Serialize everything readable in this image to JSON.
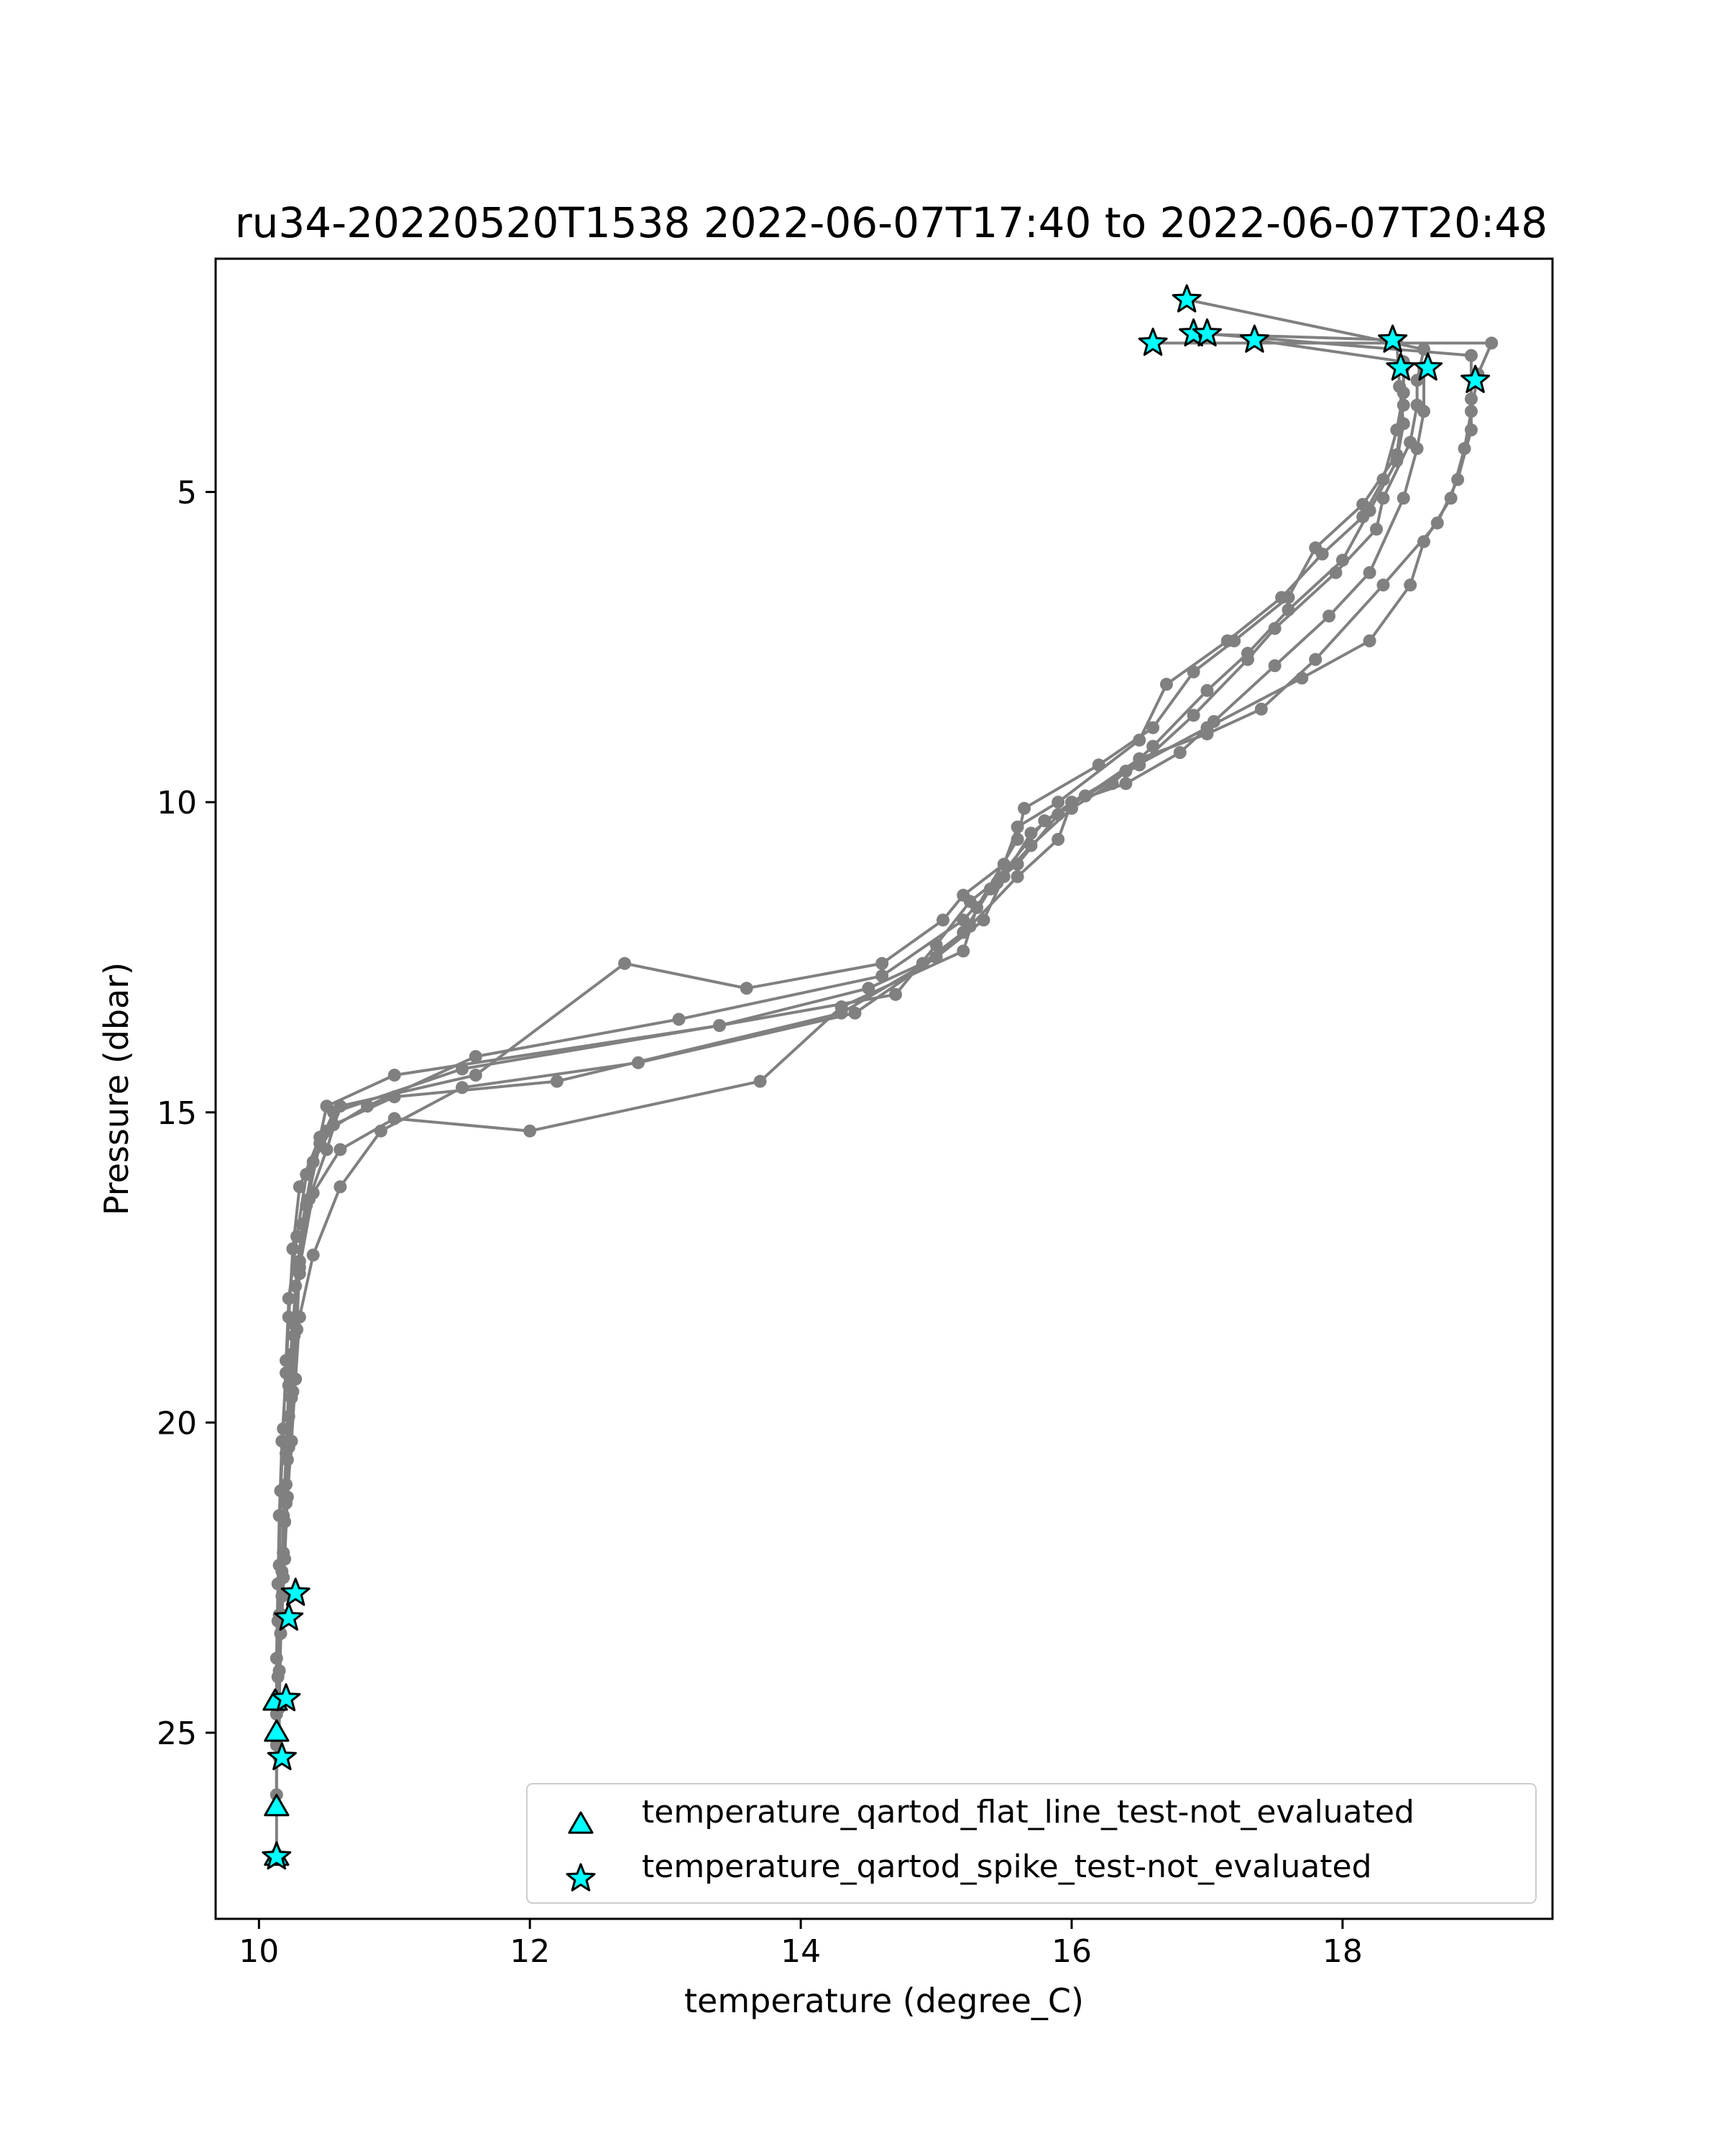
{
  "chart_data": {
    "type": "scatter",
    "title": "ru34-20220520T1538 2022-06-07T17:40 to 2022-06-07T20:48",
    "xlabel": "temperature (degree_C)",
    "ylabel": "Pressure (dbar)",
    "xlim": [
      9.68,
      19.55
    ],
    "ylim": [
      28.0,
      1.24
    ],
    "y_inverted": true,
    "grid": false,
    "x_ticks": [
      {
        "value": 10,
        "label": "10"
      },
      {
        "value": 12,
        "label": "12"
      },
      {
        "value": 14,
        "label": "14"
      },
      {
        "value": 16,
        "label": "16"
      },
      {
        "value": 18,
        "label": "18"
      }
    ],
    "y_ticks": [
      {
        "value": 5,
        "label": "5"
      },
      {
        "value": 10,
        "label": "10"
      },
      {
        "value": 15,
        "label": "15"
      },
      {
        "value": 20,
        "label": "20"
      },
      {
        "value": 25,
        "label": "25"
      }
    ],
    "colors": {
      "profile_line": "#808080",
      "flag_fill": "#00ffff",
      "flag_edge": "#000000",
      "axes": "#000000"
    },
    "legend": {
      "placement": "lower-right",
      "entries": [
        {
          "marker": "triangle",
          "label": "temperature_qartod_flat_line_test-not_evaluated"
        },
        {
          "marker": "star",
          "label": "temperature_qartod_spike_test-not_evaluated"
        }
      ]
    },
    "series": [
      {
        "marker": "circle",
        "points": [
          [
            18.6,
            2.7
          ],
          [
            18.55,
            3.2
          ],
          [
            18.55,
            3.6
          ],
          [
            18.5,
            4.2
          ],
          [
            18.3,
            5.1
          ],
          [
            18.25,
            5.6
          ],
          [
            17.95,
            6.3
          ],
          [
            17.5,
            7.2
          ],
          [
            17.3,
            7.7
          ],
          [
            16.9,
            8.6
          ],
          [
            16.5,
            9.4
          ],
          [
            16.1,
            9.9
          ],
          [
            15.8,
            10.3
          ],
          [
            15.4,
            11.4
          ],
          [
            15.2,
            12.1
          ],
          [
            14.9,
            12.6
          ],
          [
            14.5,
            13.0
          ],
          [
            13.4,
            13.6
          ],
          [
            11.0,
            14.4
          ],
          [
            10.5,
            14.9
          ],
          [
            10.45,
            15.4
          ],
          [
            10.3,
            16.2
          ],
          [
            10.25,
            17.2
          ],
          [
            10.22,
            18.3
          ],
          [
            10.2,
            19.2
          ],
          [
            10.17,
            20.3
          ],
          [
            10.15,
            21.5
          ],
          [
            10.14,
            22.6
          ],
          [
            10.13,
            23.8
          ],
          [
            10.13,
            24.7
          ]
        ]
      },
      {
        "marker": "circle",
        "points": [
          [
            19.1,
            2.6
          ],
          [
            19.0,
            3.1
          ],
          [
            18.95,
            3.7
          ],
          [
            18.9,
            4.3
          ],
          [
            18.8,
            5.1
          ],
          [
            18.6,
            5.8
          ],
          [
            18.5,
            6.5
          ],
          [
            18.2,
            7.4
          ],
          [
            17.7,
            8.0
          ],
          [
            17.0,
            8.8
          ],
          [
            16.4,
            9.5
          ],
          [
            16.0,
            10.0
          ],
          [
            15.7,
            10.5
          ],
          [
            15.5,
            11.2
          ],
          [
            15.35,
            11.9
          ],
          [
            15.0,
            12.5
          ],
          [
            14.3,
            13.4
          ],
          [
            12.2,
            14.5
          ],
          [
            11.0,
            14.75
          ],
          [
            10.55,
            15.2
          ],
          [
            10.4,
            15.8
          ],
          [
            10.32,
            16.8
          ],
          [
            10.27,
            17.8
          ],
          [
            10.24,
            18.9
          ],
          [
            10.22,
            19.9
          ],
          [
            10.2,
            21.0
          ],
          [
            10.18,
            22.1
          ],
          [
            10.17,
            22.8
          ]
        ]
      },
      {
        "marker": "circle",
        "points": [
          [
            18.4,
            2.55
          ],
          [
            18.42,
            3.3
          ],
          [
            18.45,
            3.9
          ],
          [
            18.4,
            4.5
          ],
          [
            18.2,
            5.3
          ],
          [
            18.0,
            6.1
          ],
          [
            17.6,
            6.9
          ],
          [
            17.3,
            7.6
          ],
          [
            17.0,
            8.2
          ],
          [
            16.6,
            9.1
          ],
          [
            16.3,
            9.7
          ],
          [
            16.0,
            10.1
          ],
          [
            15.7,
            10.7
          ],
          [
            15.45,
            11.3
          ],
          [
            15.2,
            11.9
          ],
          [
            14.6,
            12.8
          ],
          [
            13.1,
            13.5
          ],
          [
            11.6,
            14.1
          ],
          [
            10.8,
            14.9
          ],
          [
            10.5,
            15.3
          ],
          [
            10.35,
            16.0
          ],
          [
            10.28,
            17.0
          ],
          [
            10.22,
            18.0
          ],
          [
            10.2,
            19.0
          ],
          [
            10.18,
            20.1
          ],
          [
            10.16,
            21.1
          ],
          [
            10.15,
            22.3
          ],
          [
            10.14,
            23.2
          ]
        ]
      },
      {
        "marker": "circle",
        "points": [
          [
            18.95,
            2.8
          ],
          [
            18.95,
            3.5
          ],
          [
            18.95,
            4.0
          ],
          [
            18.85,
            4.8
          ],
          [
            18.7,
            5.5
          ],
          [
            18.3,
            6.5
          ],
          [
            17.8,
            7.7
          ],
          [
            17.4,
            8.5
          ],
          [
            17.0,
            8.9
          ],
          [
            16.5,
            9.3
          ],
          [
            16.1,
            9.9
          ],
          [
            15.9,
            10.2
          ],
          [
            15.6,
            11.0
          ],
          [
            15.25,
            11.6
          ],
          [
            15.0,
            12.3
          ],
          [
            14.7,
            13.1
          ],
          [
            13.4,
            13.6
          ],
          [
            11.5,
            14.3
          ],
          [
            10.55,
            15.0
          ],
          [
            10.45,
            15.5
          ],
          [
            10.35,
            16.5
          ],
          [
            10.3,
            17.6
          ],
          [
            10.26,
            18.6
          ],
          [
            10.24,
            19.6
          ],
          [
            10.21,
            20.6
          ],
          [
            10.19,
            21.6
          ],
          [
            10.18,
            22.5
          ],
          [
            10.16,
            23.4
          ],
          [
            10.15,
            24.6
          ]
        ]
      },
      {
        "marker": "circle",
        "points": [
          [
            18.45,
            2.9
          ],
          [
            18.45,
            3.4
          ],
          [
            18.4,
            4.0
          ],
          [
            18.3,
            4.8
          ],
          [
            18.15,
            5.4
          ],
          [
            17.85,
            6.0
          ],
          [
            17.55,
            6.7
          ],
          [
            17.15,
            7.4
          ],
          [
            16.7,
            8.1
          ],
          [
            16.5,
            9.0
          ],
          [
            15.9,
            10.0
          ],
          [
            15.6,
            10.4
          ],
          [
            15.5,
            11.0
          ],
          [
            15.2,
            11.5
          ],
          [
            15.05,
            11.9
          ],
          [
            14.6,
            12.6
          ],
          [
            13.6,
            13.0
          ],
          [
            12.7,
            12.6
          ],
          [
            11.6,
            14.4
          ],
          [
            10.6,
            14.9
          ],
          [
            10.5,
            15.6
          ],
          [
            10.37,
            16.4
          ],
          [
            10.3,
            17.4
          ],
          [
            10.28,
            18.5
          ],
          [
            10.25,
            19.5
          ],
          [
            10.22,
            20.4
          ],
          [
            10.2,
            21.3
          ],
          [
            10.18,
            22.1
          ],
          [
            10.15,
            23.1
          ],
          [
            10.14,
            24.1
          ],
          [
            10.13,
            25.2
          ],
          [
            10.13,
            26.2
          ],
          [
            10.13,
            27.0
          ]
        ]
      },
      {
        "marker": "circle",
        "points": [
          [
            18.45,
            3.0
          ],
          [
            18.45,
            3.6
          ],
          [
            18.4,
            4.4
          ],
          [
            18.15,
            5.2
          ],
          [
            17.8,
            5.9
          ],
          [
            17.6,
            6.7
          ],
          [
            17.2,
            7.4
          ],
          [
            16.9,
            7.9
          ],
          [
            16.6,
            8.8
          ],
          [
            16.2,
            9.4
          ],
          [
            15.65,
            10.1
          ],
          [
            15.6,
            10.6
          ],
          [
            15.3,
            11.7
          ],
          [
            15.2,
            12.4
          ],
          [
            14.3,
            13.3
          ],
          [
            13.7,
            14.5
          ],
          [
            12.0,
            15.3
          ],
          [
            11.0,
            15.1
          ],
          [
            10.6,
            15.6
          ],
          [
            10.4,
            16.3
          ],
          [
            10.3,
            17.5
          ],
          [
            10.25,
            18.4
          ],
          [
            10.22,
            19.4
          ],
          [
            10.2,
            20.5
          ],
          [
            10.18,
            21.5
          ],
          [
            10.17,
            22.4
          ],
          [
            10.16,
            23.4
          ],
          [
            10.15,
            24.5
          ],
          [
            10.15,
            25.4
          ]
        ]
      },
      {
        "marker": "circle",
        "points": [
          [
            18.6,
            3.0
          ],
          [
            18.6,
            3.7
          ],
          [
            18.55,
            4.3
          ],
          [
            18.45,
            5.1
          ],
          [
            18.2,
            6.3
          ],
          [
            17.9,
            7.0
          ],
          [
            17.5,
            7.8
          ],
          [
            17.05,
            8.7
          ],
          [
            16.8,
            9.2
          ],
          [
            16.4,
            9.7
          ],
          [
            16.0,
            10.0
          ],
          [
            15.9,
            10.6
          ],
          [
            15.6,
            11.2
          ],
          [
            15.25,
            12.0
          ],
          [
            15.0,
            12.5
          ],
          [
            14.4,
            13.4
          ],
          [
            12.8,
            14.2
          ],
          [
            11.5,
            14.6
          ],
          [
            10.9,
            15.3
          ],
          [
            10.6,
            16.2
          ],
          [
            10.4,
            17.3
          ],
          [
            10.3,
            18.3
          ],
          [
            10.27,
            19.3
          ],
          [
            10.24,
            20.3
          ],
          [
            10.21,
            21.2
          ],
          [
            10.19,
            22.2
          ],
          [
            10.17,
            23.1
          ],
          [
            10.15,
            24.0
          ],
          [
            10.13,
            25.0
          ],
          [
            10.13,
            26.0
          ]
        ]
      }
    ],
    "connectors": [
      [
        [
          16.85,
          1.9
        ],
        [
          18.6,
          2.7
        ]
      ],
      [
        [
          16.6,
          2.6
        ],
        [
          19.1,
          2.6
        ]
      ],
      [
        [
          16.9,
          2.45
        ],
        [
          18.4,
          2.55
        ]
      ],
      [
        [
          17.0,
          2.45
        ],
        [
          18.95,
          2.8
        ]
      ],
      [
        [
          17.35,
          2.55
        ],
        [
          18.45,
          2.9
        ]
      ]
    ],
    "flags": {
      "spike_stars": [
        [
          16.85,
          1.9
        ],
        [
          16.6,
          2.6
        ],
        [
          16.9,
          2.45
        ],
        [
          17.0,
          2.45
        ],
        [
          17.35,
          2.55
        ],
        [
          18.37,
          2.55
        ],
        [
          18.43,
          3.0
        ],
        [
          18.63,
          3.0
        ],
        [
          18.98,
          3.2
        ],
        [
          10.27,
          22.75
        ],
        [
          10.22,
          23.15
        ],
        [
          10.2,
          24.45
        ],
        [
          10.17,
          25.4
        ],
        [
          10.13,
          27.0
        ]
      ],
      "flatline_triangles": [
        [
          10.12,
          24.5
        ],
        [
          10.13,
          25.0
        ],
        [
          10.13,
          26.2
        ],
        [
          10.13,
          27.0
        ]
      ]
    }
  }
}
